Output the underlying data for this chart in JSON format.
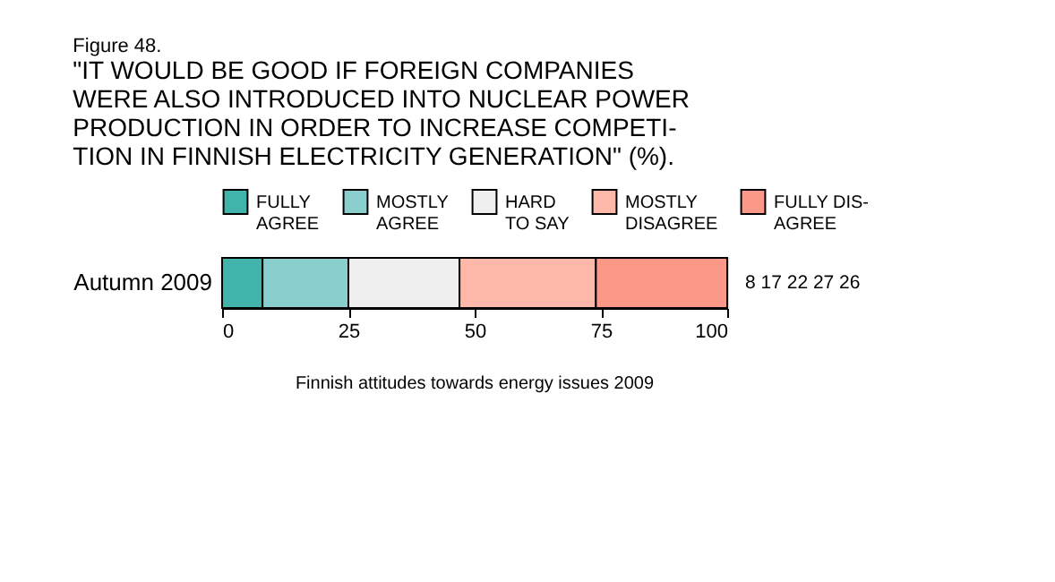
{
  "chart_data": {
    "type": "bar",
    "orientation": "horizontal",
    "stacked": true,
    "title": "Figure 48.",
    "subtitle": "\"IT WOULD BE GOOD IF FOREIGN COMPANIES\nWERE ALSO INTRODUCED INTO NUCLEAR POWER\nPRODUCTION IN ORDER TO INCREASE COMPETI-\nTION IN FINNISH ELECTRICITY GENERATION\" (%).",
    "categories": [
      "Autumn 2009"
    ],
    "series": [
      {
        "name": "FULLY\nAGREE",
        "color": "#40b4aa",
        "values": [
          8
        ]
      },
      {
        "name": "MOSTLY\nAGREE",
        "color": "#8acfce",
        "values": [
          17
        ]
      },
      {
        "name": "HARD\nTO SAY",
        "color": "#efefef",
        "values": [
          22
        ]
      },
      {
        "name": "MOSTLY\nDISAGREE",
        "color": "#fdb8aa",
        "values": [
          27
        ]
      },
      {
        "name": "FULLY DIS-\nAGREE",
        "color": "#fc9888",
        "values": [
          26
        ]
      }
    ],
    "xlim": [
      0,
      100
    ],
    "xticks": [
      0,
      25,
      50,
      75,
      100
    ],
    "legend": "top",
    "annotations": [
      "8  17  22  27  26",
      "Finnish attitudes towards energy issues 2009"
    ]
  }
}
